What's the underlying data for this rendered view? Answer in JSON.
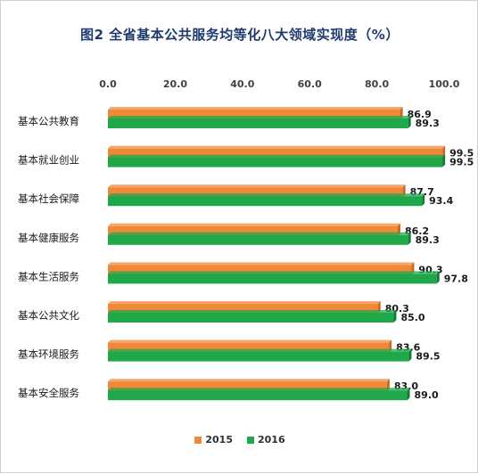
{
  "colors": {
    "s2015": "#f0883a",
    "s2015_dark": "#c96a22",
    "s2016": "#1fa84a",
    "s2016_dark": "#137a33",
    "title": "#1f3a6e"
  },
  "chart_data": {
    "type": "bar",
    "orientation": "horizontal",
    "title": "图2 全省基本公共服务均等化八大领域实现度（%）",
    "xlabel": "",
    "ylabel": "",
    "xlim": [
      0,
      100
    ],
    "x_ticks": [
      "0.0",
      "20.0",
      "40.0",
      "60.0",
      "80.0",
      "100.0"
    ],
    "x_tick_values": [
      0,
      20,
      40,
      60,
      80,
      100
    ],
    "axis_position": "top",
    "legend_position": "bottom",
    "categories": [
      "基本公共教育",
      "基本就业创业",
      "基本社会保障",
      "基本健康服务",
      "基本生活服务",
      "基本公共文化",
      "基本环境服务",
      "基本安全服务"
    ],
    "series": [
      {
        "name": "2015",
        "values": [
          86.9,
          99.5,
          87.7,
          86.2,
          90.3,
          80.3,
          83.6,
          83.0
        ],
        "labels": [
          "86.9",
          "99.5",
          "87.7",
          "86.2",
          "90.3",
          "80.3",
          "83.6",
          "83.0"
        ]
      },
      {
        "name": "2016",
        "values": [
          89.3,
          99.5,
          93.4,
          89.3,
          97.8,
          85.0,
          89.5,
          89.0
        ],
        "labels": [
          "89.3",
          "99.5",
          "93.4",
          "89.3",
          "97.8",
          "85.0",
          "89.5",
          "89.0"
        ]
      }
    ]
  }
}
